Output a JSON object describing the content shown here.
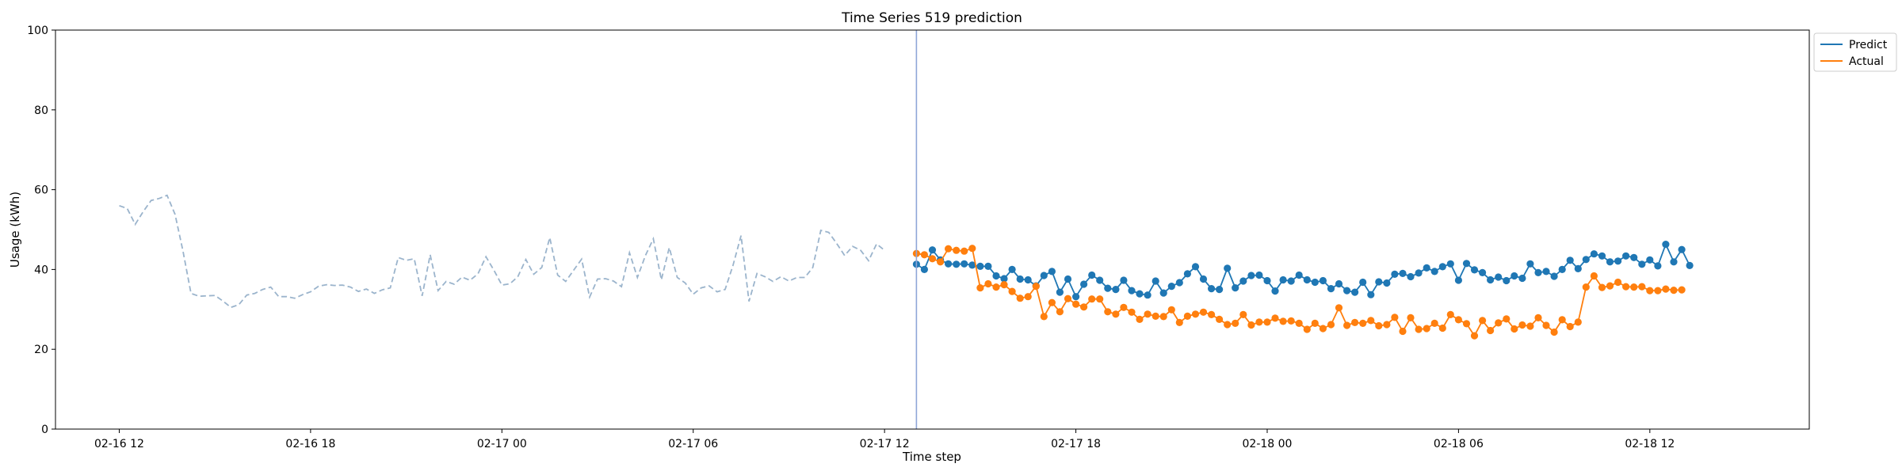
{
  "chart_data": {
    "type": "line",
    "title": "Time Series 519 prediction",
    "xlabel": "Time step",
    "ylabel": "Usage (kWh)",
    "ylim": [
      0,
      100
    ],
    "yticks": [
      0,
      20,
      40,
      60,
      80,
      100
    ],
    "xlim": [
      "02-16 10:00",
      "02-18 17:00"
    ],
    "xticks": [
      "02-16 12:00",
      "02-16 18:00",
      "02-17 00:00",
      "02-17 06:00",
      "02-17 12:00",
      "02-17 18:00",
      "02-18 00:00",
      "02-18 06:00",
      "02-18 12:00"
    ],
    "xtick_labels": [
      "02-16 12",
      "02-16 18",
      "02-17 00",
      "02-17 06",
      "02-17 12",
      "02-17 18",
      "02-18 00",
      "02-18 06",
      "02-18 12"
    ],
    "legend_position": "outside-top-right",
    "legend": [
      {
        "label": "Predict",
        "color": "#1f77b4"
      },
      {
        "label": "Actual",
        "color": "#ff7f0e"
      }
    ],
    "forecast_start": "02-17 13:00",
    "colors": {
      "history": "#9bb4cc",
      "predict": "#1f77b4",
      "actual": "#ff7f0e",
      "divider": "#8ea6d8"
    },
    "history": {
      "start": "02-16 12:00",
      "step_minutes": 15,
      "values": [
        56,
        55.3,
        51.3,
        54.5,
        57.3,
        57.8,
        58.6,
        53.8,
        44.6,
        34,
        33.3,
        33.4,
        33.5,
        32.1,
        30.5,
        31.2,
        33.6,
        34,
        35,
        35.6,
        33.2,
        33.2,
        32.8,
        33.7,
        34.4,
        35.8,
        36.2,
        36,
        36.1,
        35.6,
        34.5,
        35.1,
        34,
        34.9,
        35.4,
        43,
        42.3,
        42.7,
        33.4,
        43.7,
        34.7,
        37,
        36.3,
        38.1,
        37.3,
        38.9,
        43.2,
        39.8,
        36.1,
        36.4,
        38.2,
        42.5,
        38.8,
        40.5,
        48,
        38.6,
        37,
        39.8,
        42.6,
        33.1,
        37.6,
        37.7,
        37.1,
        35.7,
        44.2,
        38,
        43.5,
        47.7,
        37.4,
        45.5,
        38,
        36.6,
        33.8,
        35.4,
        35.9,
        34.4,
        35,
        41.1,
        48.5,
        32,
        39,
        38.2,
        37,
        38.2,
        37.1,
        38,
        38,
        40.5,
        49.8,
        49.3,
        46.5,
        43.5,
        45.8,
        44.8,
        42.2,
        46.4,
        44.8
      ]
    },
    "series": [
      {
        "name": "Predict",
        "start": "02-17 13:00",
        "step_minutes": 15,
        "values": [
          41.3,
          40,
          44.9,
          42.4,
          41.4,
          41.3,
          41.4,
          41.1,
          40.8,
          40.8,
          38.4,
          37.7,
          40,
          37.6,
          37.4,
          35.9,
          38.5,
          39.5,
          34.3,
          37.6,
          33.2,
          36.3,
          38.6,
          37.3,
          35.3,
          35,
          37.3,
          34.7,
          33.9,
          33.6,
          37.1,
          34.1,
          35.8,
          36.7,
          38.9,
          40.7,
          37.6,
          35.2,
          35,
          40.3,
          35.4,
          37.1,
          38.5,
          38.6,
          37.2,
          34.6,
          37.4,
          37.1,
          38.6,
          37.4,
          36.8,
          37.2,
          35.2,
          36.4,
          34.7,
          34.3,
          36.8,
          33.7,
          36.9,
          36.6,
          38.8,
          39,
          38.2,
          39.1,
          40.4,
          39.5,
          40.7,
          41.4,
          37.3,
          41.5,
          39.9,
          39.2,
          37.4,
          38.1,
          37.2,
          38.4,
          37.8,
          41.4,
          39.2,
          39.5,
          38.3,
          40,
          42.3,
          40.2,
          42.5,
          43.9,
          43.4,
          41.9,
          42.1,
          43.4,
          43,
          41.3,
          42.4,
          40.9,
          46.3,
          41.9,
          45,
          41
        ]
      },
      {
        "name": "Actual",
        "start": "02-17 13:00",
        "step_minutes": 15,
        "values": [
          44,
          43.7,
          42.7,
          41.9,
          45.2,
          44.8,
          44.6,
          45.3,
          35.4,
          36.4,
          35.6,
          36.2,
          34.5,
          32.8,
          33.2,
          35.8,
          28.2,
          31.7,
          29.4,
          32.7,
          31.3,
          30.6,
          32.6,
          32.6,
          29.4,
          28.8,
          30.5,
          29.3,
          27.5,
          28.8,
          28.3,
          28.2,
          29.9,
          26.7,
          28.3,
          28.8,
          29.3,
          28.7,
          27.5,
          26.2,
          26.5,
          28.7,
          26.1,
          26.8,
          26.8,
          27.8,
          27,
          27.1,
          26.5,
          25,
          26.5,
          25.2,
          26.2,
          30.4,
          26,
          26.7,
          26.5,
          27.2,
          25.9,
          26.2,
          28,
          24.5,
          27.9,
          25,
          25.2,
          26.5,
          25.3,
          28.7,
          27.4,
          26.4,
          23.4,
          27.2,
          24.7,
          26.6,
          27.6,
          25.1,
          26.1,
          25.8,
          27.9,
          26,
          24.3,
          27.4,
          25.7,
          26.8,
          35.6,
          38.4,
          35.5,
          35.9,
          36.8,
          35.7,
          35.6,
          35.7,
          34.7,
          34.7,
          35.1,
          34.8,
          34.9
        ]
      }
    ]
  }
}
